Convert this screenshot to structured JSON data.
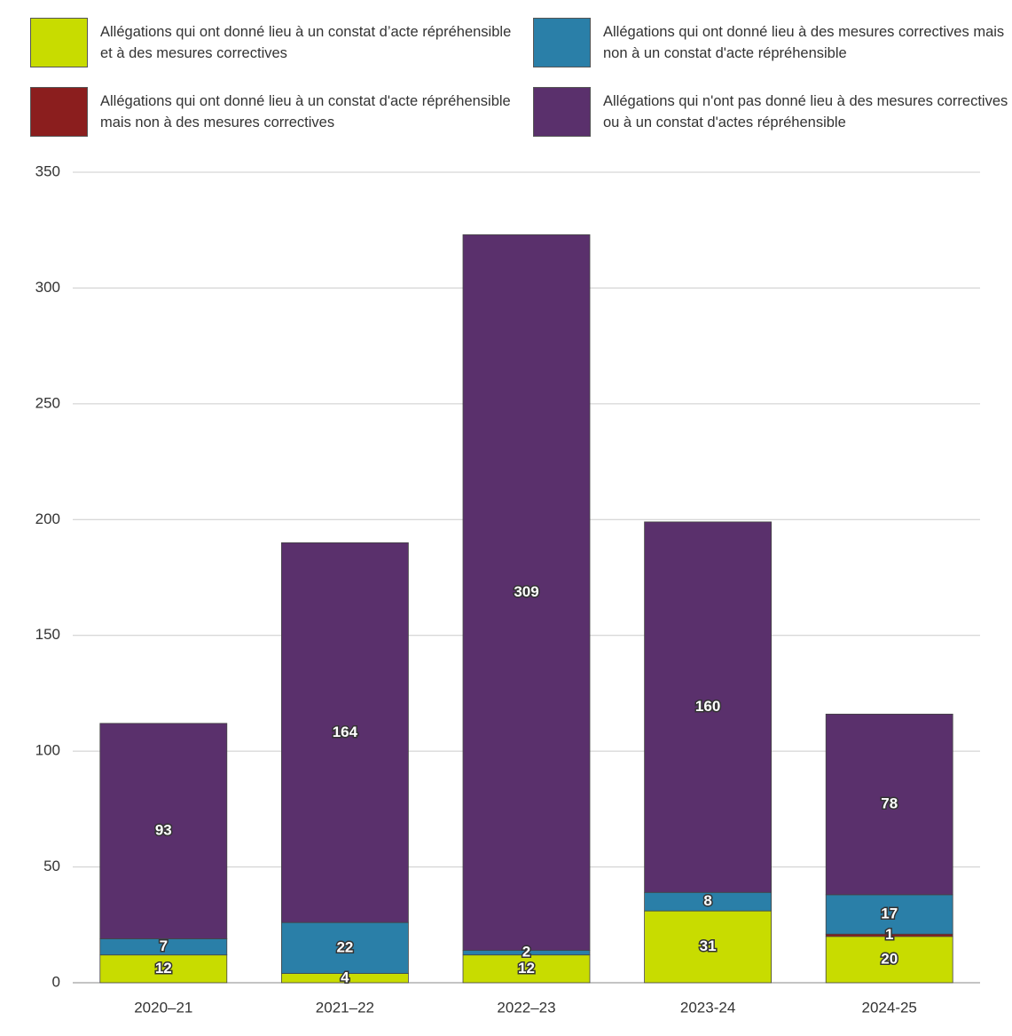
{
  "chart_data": {
    "type": "stacked_bar",
    "categories": [
      "2020–21",
      "2021–22",
      "2022–23",
      "2023-24",
      "2024-25"
    ],
    "series": [
      {
        "name": "Allégations qui ont donné lieu à un constat d’acte répréhensible et à des mesures correctives",
        "color": "#c8dc00",
        "values": [
          12,
          4,
          12,
          31,
          20
        ]
      },
      {
        "name": "Allégations qui ont donné lieu à un constat d'acte répréhensible mais non à des mesures correctives",
        "color": "#8b1e1e",
        "values": [
          null,
          null,
          null,
          null,
          1
        ]
      },
      {
        "name": "Allégations qui ont donné lieu à des mesures correctives mais non à un constat d'acte répréhensible",
        "color": "#2a7fa8",
        "values": [
          7,
          22,
          2,
          8,
          17
        ]
      },
      {
        "name": "Allégations qui n'ont pas donné lieu à des mesures correctives ou à un constat d'actes répréhensible",
        "color": "#5a306c",
        "values": [
          93,
          164,
          309,
          160,
          78
        ]
      }
    ],
    "ylim": [
      0,
      350
    ],
    "yticks": [
      0,
      50,
      100,
      150,
      200,
      250,
      300,
      350
    ],
    "grid": true
  }
}
